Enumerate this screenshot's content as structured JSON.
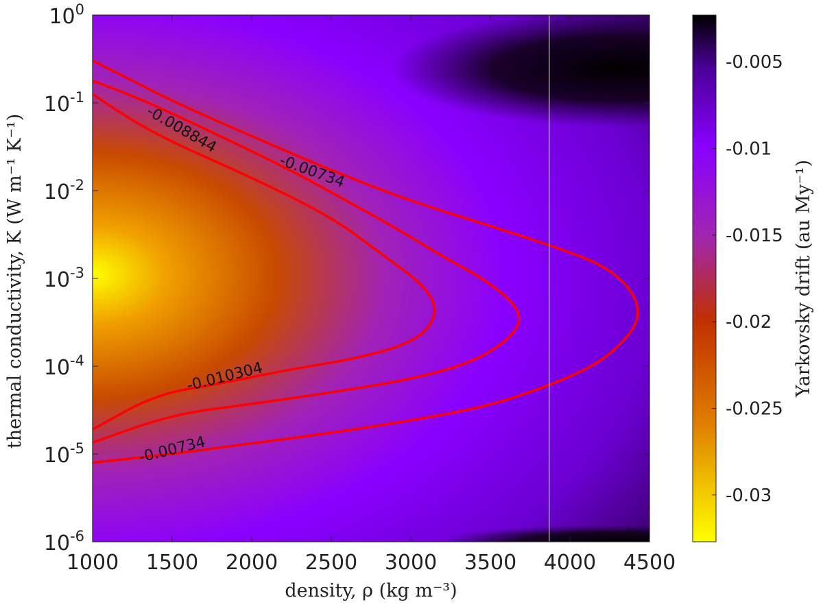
{
  "chart_data": {
    "type": "heatmap",
    "xlabel": "density, ρ (kg m⁻³)",
    "ylabel": "thermal conductivity, K (W m⁻¹ K⁻¹)",
    "xlim": [
      1000,
      4500
    ],
    "ylim_log10": [
      -6,
      0
    ],
    "y_scale": "log",
    "x_ticks": [
      "1000",
      "1500",
      "2000",
      "2500",
      "3000",
      "3500",
      "4000",
      "4500"
    ],
    "y_ticks": [
      {
        "base": "10",
        "exp": "0"
      },
      {
        "base": "10",
        "exp": "-1"
      },
      {
        "base": "10",
        "exp": "-2"
      },
      {
        "base": "10",
        "exp": "-3"
      },
      {
        "base": "10",
        "exp": "-4"
      },
      {
        "base": "10",
        "exp": "-5"
      },
      {
        "base": "10",
        "exp": "-6"
      }
    ],
    "colorbar": {
      "label": "Yarkovsky drift (au My⁻¹)",
      "range": [
        -0.0327,
        -0.0023
      ],
      "ticks": [
        "-0.005",
        "-0.01",
        "-0.015",
        "-0.02",
        "-0.025",
        "-0.03"
      ],
      "tick_values": [
        -0.005,
        -0.01,
        -0.015,
        -0.02,
        -0.025,
        -0.03
      ],
      "colormap": [
        "#ffff00",
        "#f5a000",
        "#c84e00",
        "#9b1e9b",
        "#8a00ff",
        "#4a00a0",
        "#000000"
      ]
    },
    "contours": [
      {
        "level": "-0.00734",
        "color": "#ff0000",
        "points": [
          [
            1000,
            -0.52
          ],
          [
            1200,
            -0.7
          ],
          [
            1500,
            -0.98
          ],
          [
            2000,
            -1.38
          ],
          [
            2500,
            -1.77
          ],
          [
            3000,
            -2.12
          ],
          [
            3500,
            -2.4
          ],
          [
            4000,
            -2.7
          ],
          [
            4200,
            -2.85
          ],
          [
            4350,
            -3.05
          ],
          [
            4440,
            -3.33
          ],
          [
            4400,
            -3.6
          ],
          [
            4200,
            -3.95
          ],
          [
            3900,
            -4.2
          ],
          [
            3500,
            -4.45
          ],
          [
            3000,
            -4.62
          ],
          [
            2500,
            -4.76
          ],
          [
            2000,
            -4.88
          ],
          [
            1500,
            -5.0
          ],
          [
            1000,
            -5.1
          ]
        ],
        "labels": [
          {
            "text": "-0.00734",
            "x": 2380,
            "log10y": -1.78,
            "angle": 20
          },
          {
            "text": "-0.00734",
            "x": 1500,
            "log10y": -4.95,
            "angle": -14
          }
        ]
      },
      {
        "level": "-0.008844",
        "color": "#ff0000",
        "points": [
          [
            1000,
            -0.75
          ],
          [
            1200,
            -0.88
          ],
          [
            1500,
            -1.12
          ],
          [
            2000,
            -1.55
          ],
          [
            2300,
            -1.82
          ],
          [
            2600,
            -2.12
          ],
          [
            2900,
            -2.42
          ],
          [
            3200,
            -2.75
          ],
          [
            3500,
            -3.05
          ],
          [
            3700,
            -3.38
          ],
          [
            3650,
            -3.65
          ],
          [
            3400,
            -3.95
          ],
          [
            3000,
            -4.15
          ],
          [
            2500,
            -4.3
          ],
          [
            2000,
            -4.43
          ],
          [
            1500,
            -4.55
          ],
          [
            1000,
            -4.87
          ]
        ],
        "labels": [
          {
            "text": "-0.008844",
            "x": 1560,
            "log10y": -1.3,
            "angle": 30
          }
        ]
      },
      {
        "level": "-0.010304",
        "color": "#ff0000",
        "points": [
          [
            1000,
            -0.9
          ],
          [
            1200,
            -1.15
          ],
          [
            1500,
            -1.45
          ],
          [
            2000,
            -1.85
          ],
          [
            2500,
            -2.3
          ],
          [
            2800,
            -2.7
          ],
          [
            3100,
            -3.1
          ],
          [
            3170,
            -3.4
          ],
          [
            3050,
            -3.7
          ],
          [
            2700,
            -3.9
          ],
          [
            2200,
            -4.05
          ],
          [
            1800,
            -4.2
          ],
          [
            1400,
            -4.32
          ],
          [
            1000,
            -4.72
          ]
        ],
        "labels": [
          {
            "text": "-0.010304",
            "x": 1830,
            "log10y": -4.12,
            "angle": -14
          }
        ]
      }
    ],
    "vertical_line_x": 3870,
    "legend_position": "none",
    "grid": false
  }
}
